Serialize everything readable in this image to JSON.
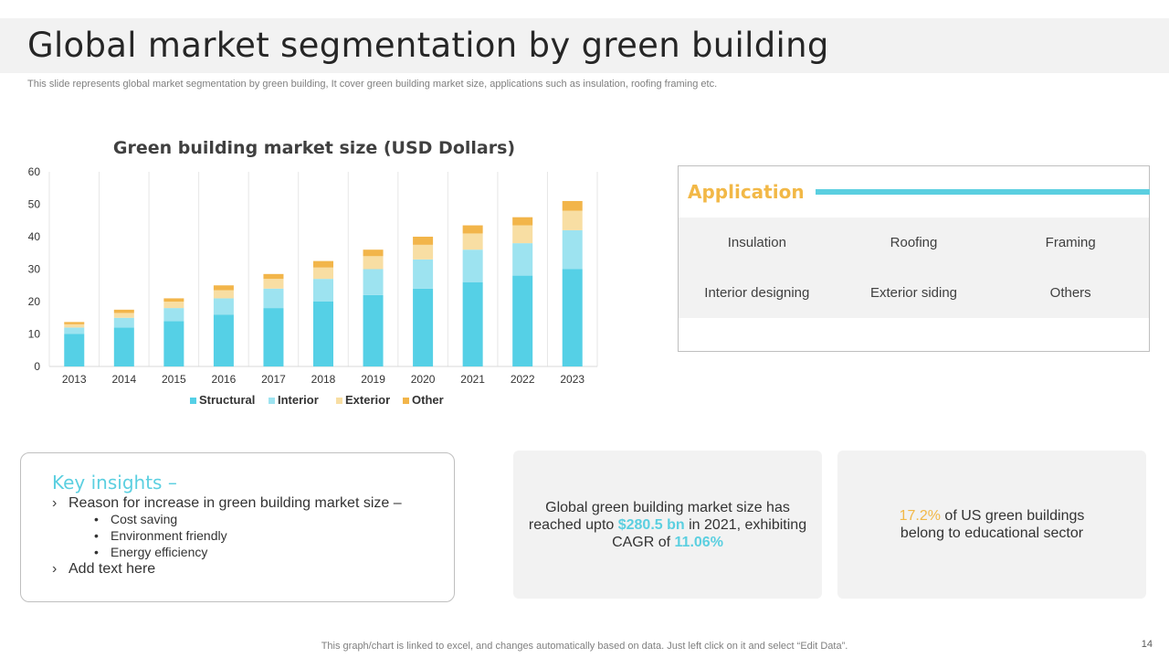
{
  "header": {
    "title": "Global market segmentation by green building",
    "subtitle": "This slide represents global market segmentation by green building, It cover green building market size, applications such as insulation, roofing framing etc."
  },
  "chart_data": {
    "type": "bar",
    "stacked": true,
    "title": "Green building market size (USD Dollars)",
    "xlabel": "",
    "ylabel": "",
    "ylim": [
      0,
      60
    ],
    "yticks": [
      0,
      10,
      20,
      30,
      40,
      50,
      60
    ],
    "grid": "vertical",
    "legend_position": "bottom",
    "categories": [
      "2013",
      "2014",
      "2015",
      "2016",
      "2017",
      "2018",
      "2019",
      "2020",
      "2021",
      "2022",
      "2023"
    ],
    "series": [
      {
        "name": "Structural",
        "color": "#55d0e6",
        "values": [
          10,
          12,
          14,
          16,
          18,
          20,
          22,
          24,
          26,
          28,
          30
        ]
      },
      {
        "name": "Interior",
        "color": "#9de3f0",
        "values": [
          2,
          3,
          4,
          5,
          6,
          7,
          8,
          9,
          10,
          10,
          12
        ]
      },
      {
        "name": "Exterior",
        "color": "#f8dea3",
        "values": [
          1,
          1.5,
          2,
          2.5,
          3,
          3.5,
          4,
          4.5,
          5,
          5.5,
          6
        ]
      },
      {
        "name": "Other",
        "color": "#f2b54a",
        "values": [
          0.7,
          1,
          1,
          1.5,
          1.5,
          2,
          2,
          2.5,
          2.5,
          2.5,
          3
        ]
      }
    ]
  },
  "application": {
    "title": "Application",
    "items": [
      "Insulation",
      "Roofing",
      "Framing",
      "Interior designing",
      "Exterior siding",
      "Others"
    ]
  },
  "insights": {
    "heading": "Key insights –",
    "point1": "Reason for increase in green building market size –",
    "subpoints": [
      "Cost saving",
      "Environment friendly",
      "Energy efficiency"
    ],
    "point2": "Add text here",
    "chevron": "›",
    "bullet": "•"
  },
  "stats": {
    "stat1_before": "Global green building market size has reached upto ",
    "stat1_value": "$280.5 bn",
    "stat1_middle": " in 2021, exhibiting CAGR of ",
    "stat1_cagr": "11.06%",
    "stat2_value": "17.2%",
    "stat2_after": " of US green buildings belong to educational sector"
  },
  "footer": {
    "note": "This graph/chart is linked to excel,  and changes automatically based on data. Just left click on it and select “Edit Data”.",
    "page_number": "14"
  },
  "colors": {
    "accent_blue": "#5bcfe0",
    "accent_orange": "#f2b847"
  }
}
